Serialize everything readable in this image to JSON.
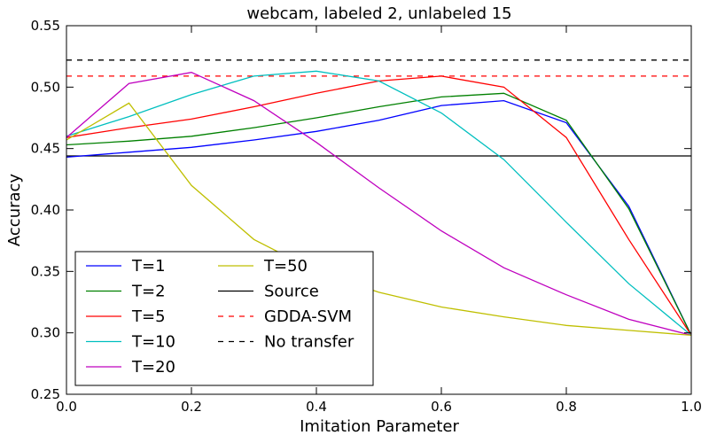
{
  "chart_data": {
    "type": "line",
    "title": "webcam, labeled 2, unlabeled 15",
    "xlabel": "Imitation Parameter",
    "ylabel": "Accuracy",
    "xlim": [
      0.0,
      1.0
    ],
    "ylim": [
      0.25,
      0.55
    ],
    "xticks": [
      "0.0",
      "0.2",
      "0.4",
      "0.6",
      "0.8",
      "1.0"
    ],
    "yticks": [
      "0.25",
      "0.30",
      "0.35",
      "0.40",
      "0.45",
      "0.50",
      "0.55"
    ],
    "grid": false,
    "legend_position": "lower-left",
    "x": [
      0.0,
      0.1,
      0.2,
      0.3,
      0.4,
      0.5,
      0.6,
      0.7,
      0.8,
      0.9,
      1.0
    ],
    "series": [
      {
        "name": "T=1",
        "color": "#0000ff",
        "style": "solid",
        "values": [
          0.443,
          0.447,
          0.451,
          0.457,
          0.464,
          0.473,
          0.485,
          0.489,
          0.471,
          0.403,
          0.298
        ]
      },
      {
        "name": "T=2",
        "color": "#008000",
        "style": "solid",
        "values": [
          0.453,
          0.456,
          0.46,
          0.467,
          0.475,
          0.484,
          0.492,
          0.495,
          0.473,
          0.401,
          0.298
        ]
      },
      {
        "name": "T=5",
        "color": "#ff0000",
        "style": "solid",
        "values": [
          0.459,
          0.467,
          0.474,
          0.484,
          0.495,
          0.505,
          0.509,
          0.5,
          0.459,
          0.376,
          0.298
        ]
      },
      {
        "name": "T=10",
        "color": "#00bfbf",
        "style": "solid",
        "values": [
          0.46,
          0.476,
          0.494,
          0.509,
          0.513,
          0.505,
          0.479,
          0.441,
          0.39,
          0.34,
          0.298
        ]
      },
      {
        "name": "T=20",
        "color": "#bf00bf",
        "style": "solid",
        "values": [
          0.459,
          0.503,
          0.512,
          0.489,
          0.455,
          0.418,
          0.383,
          0.353,
          0.331,
          0.311,
          0.298
        ]
      },
      {
        "name": "T=50",
        "color": "#bfbf00",
        "style": "solid",
        "values": [
          0.457,
          0.487,
          0.42,
          0.376,
          0.35,
          0.333,
          0.321,
          0.313,
          0.306,
          0.302,
          0.298
        ]
      }
    ],
    "reference_lines": [
      {
        "name": "Source",
        "color": "#000000",
        "style": "solid",
        "value": 0.444
      },
      {
        "name": "GDDA-SVM",
        "color": "#ff0000",
        "style": "dashed",
        "value": 0.509
      },
      {
        "name": "No transfer",
        "color": "#000000",
        "style": "dashed",
        "value": 0.522
      }
    ]
  }
}
